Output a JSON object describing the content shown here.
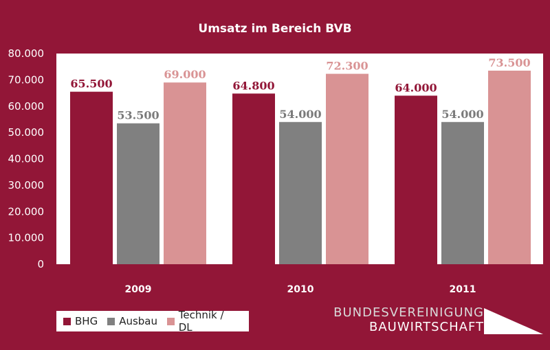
{
  "chart_data": {
    "type": "bar",
    "title": "Umsatz im Bereich BVB",
    "categories": [
      "2009",
      "2010",
      "2011"
    ],
    "series": [
      {
        "name": "BHG",
        "values": [
          65500,
          64800,
          64000
        ],
        "labels": [
          "65.500",
          "64.800",
          "64.000"
        ],
        "color": "#921637",
        "label_color": "#921637"
      },
      {
        "name": "Ausbau",
        "values": [
          53500,
          54000,
          54000
        ],
        "labels": [
          "53.500",
          "54.000",
          "54.000"
        ],
        "color": "#808080",
        "label_color": "#7a7a7a"
      },
      {
        "name": "Technik / DL",
        "values": [
          69000,
          72300,
          73500
        ],
        "labels": [
          "69.000",
          "72.300",
          "73.500"
        ],
        "color": "#d99394",
        "label_color": "#d99394"
      }
    ],
    "ylim": [
      0,
      80000
    ],
    "yticks": [
      {
        "value": 0,
        "label": "0"
      },
      {
        "value": 10000,
        "label": "10.000"
      },
      {
        "value": 20000,
        "label": "20.000"
      },
      {
        "value": 30000,
        "label": "30.000"
      },
      {
        "value": 40000,
        "label": "40.000"
      },
      {
        "value": 50000,
        "label": "50.000"
      },
      {
        "value": 60000,
        "label": "60.000"
      },
      {
        "value": 70000,
        "label": "70.000"
      },
      {
        "value": 80000,
        "label": "80.000"
      }
    ],
    "xlabel": "",
    "ylabel": "",
    "grid": false,
    "legend_position": "bottom-left",
    "plot_background": "#ffffff",
    "page_background": "#921637"
  },
  "logo": {
    "line1": "BUNDESVEREINIGUNG",
    "line2": "BAUWIRTSCHAFT"
  }
}
